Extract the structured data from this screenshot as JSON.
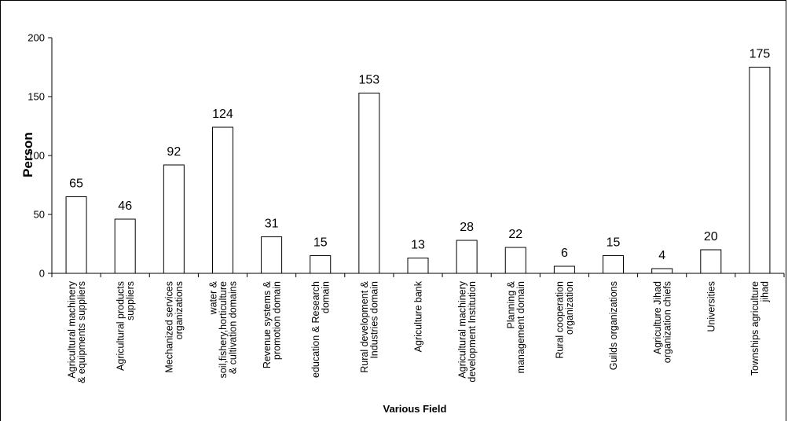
{
  "chart_data": {
    "type": "bar",
    "title": "",
    "xlabel": "Various Field",
    "ylabel": "Person",
    "ylim": [
      0,
      200
    ],
    "yticks": [
      "0",
      "50",
      "100",
      "150",
      "200"
    ],
    "grid": false,
    "legend": "none",
    "bar_fill": "#ffffff",
    "bar_stroke": "#000000",
    "categories": [
      [
        "Agricultural machinery",
        "& equipments suppliers"
      ],
      [
        "Agricultural products",
        "suppliers"
      ],
      [
        "Mechanized services",
        "organizations"
      ],
      [
        "water &",
        "soil,fishery,horticulture",
        "& cultivation domains"
      ],
      [
        "Revenue systems &",
        "promotion domain"
      ],
      [
        "education & Research",
        "domain"
      ],
      [
        "Rural development &",
        "Industries domain"
      ],
      [
        "Agriculture bank"
      ],
      [
        "Agricultural machinery",
        "development Institution"
      ],
      [
        "Planning &",
        "management domain"
      ],
      [
        "Rural cooperation",
        "organization"
      ],
      [
        "Guilds organizations"
      ],
      [
        "Agriculture Jihad",
        "organization chiefs"
      ],
      [
        "Universities"
      ],
      [
        "Townships agriculture",
        "jihad"
      ]
    ],
    "values": [
      65,
      46,
      92,
      124,
      31,
      15,
      153,
      13,
      28,
      22,
      6,
      15,
      4,
      20,
      175
    ],
    "data_labels": [
      "65",
      "46",
      "92",
      "124",
      "31",
      "15",
      "153",
      "13",
      "28",
      "22",
      "6",
      "15",
      "4",
      "20",
      "175"
    ]
  }
}
